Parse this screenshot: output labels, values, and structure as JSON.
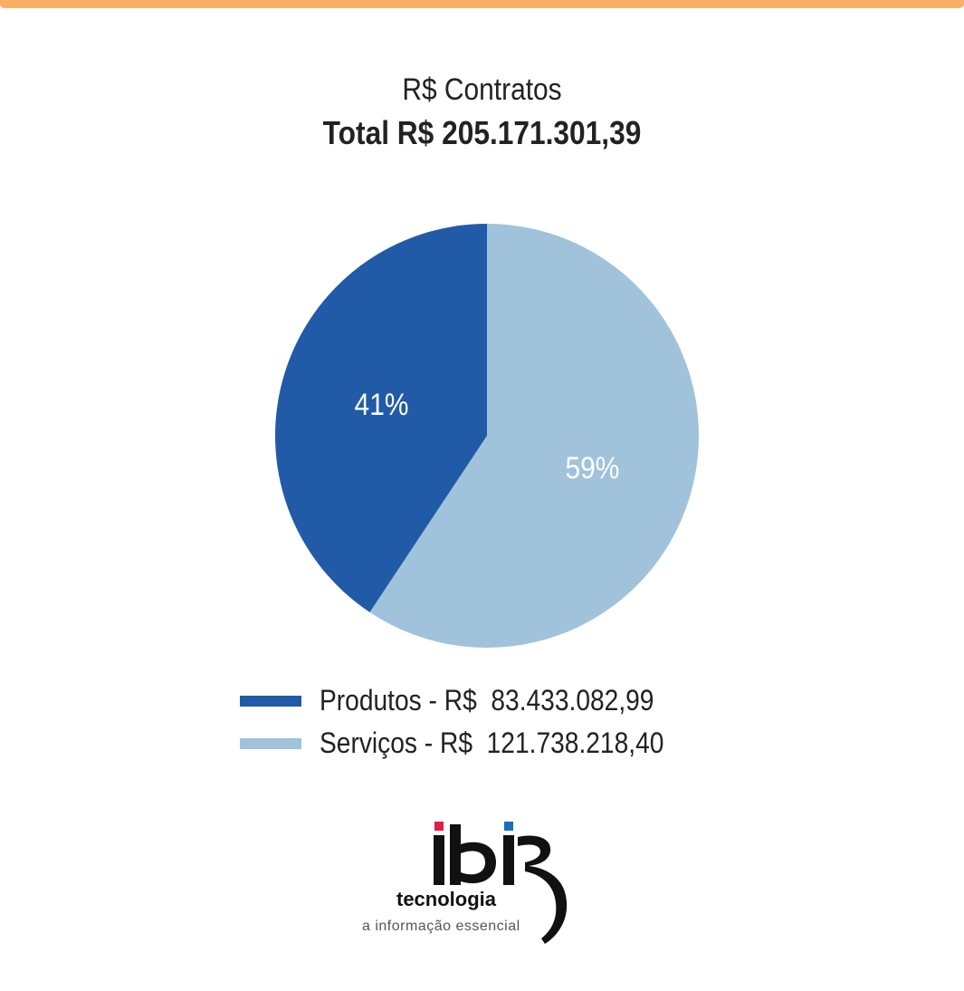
{
  "chart_data": {
    "type": "pie",
    "title": "R$ Contratos",
    "subtitle": "Total R$  205.171.301,39",
    "slices": [
      {
        "label": "Produtos - R$  83.433.082,99",
        "value": 83433082.99,
        "percent": 41,
        "percent_label": "41%",
        "color": "#215ba7"
      },
      {
        "label": "Serviços - R$  121.738.218,40",
        "value": 121738218.4,
        "percent": 59,
        "percent_label": "59%",
        "color": "#a0c2db"
      }
    ],
    "legend_position": "bottom"
  },
  "accent_color": "#f9b065",
  "logo": {
    "brand": "ibi",
    "word": "tecnologia",
    "tagline": "a informação essencial",
    "dot_colors": [
      "#e51b44",
      "#1a6fb8"
    ]
  }
}
